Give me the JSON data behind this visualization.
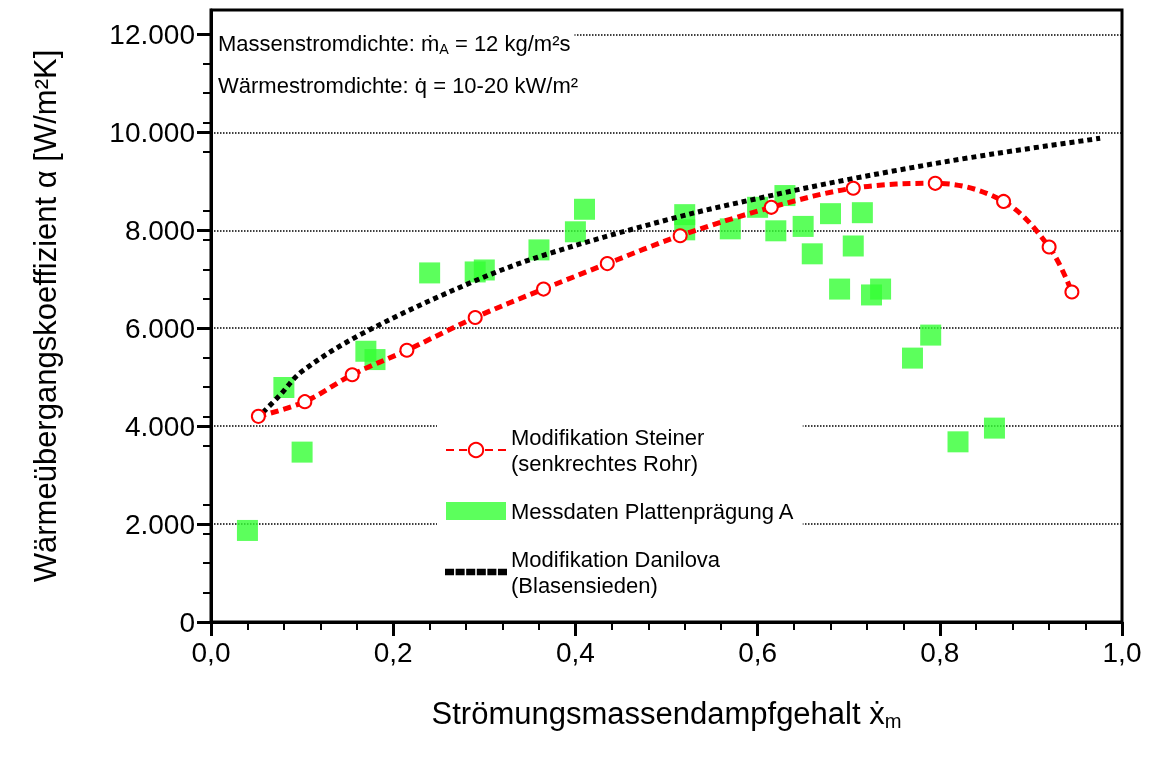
{
  "chart_data": {
    "type": "line",
    "xlabel": "Strömungsmassendampfgehalt ẋ$_{m}$",
    "ylabel": "Wärmeübergangskoeffizient α [W/m²K]",
    "annotations": [
      "Massenstromdichte: ṁ$_{A}$ = 12 kg/m²s",
      "Wärmestromdichte: q̇ = 10-20 kW/m²"
    ],
    "xlim": [
      0,
      1
    ],
    "xticks": [
      {
        "value": 0,
        "label": "0,0"
      },
      {
        "value": 0.2,
        "label": "0,2"
      },
      {
        "value": 0.4,
        "label": "0,4"
      },
      {
        "value": 0.6,
        "label": "0,6"
      },
      {
        "value": 0.8,
        "label": "0,8"
      },
      {
        "value": 1,
        "label": "1,0"
      }
    ],
    "ylim": [
      0,
      12500
    ],
    "yticks": [
      0,
      {
        "value": 2000,
        "label": "2.000"
      },
      {
        "value": 4000,
        "label": "4.000"
      },
      {
        "value": 6000,
        "label": "6.000"
      },
      {
        "value": 8000,
        "label": "8.000"
      },
      {
        "value": 10000,
        "label": "10.000"
      },
      {
        "value": 12000,
        "label": "12.000"
      }
    ],
    "grid": "y",
    "legend": "bottom",
    "series": [
      {
        "name": "Modifikation Steiner\n(senkrechtes Rohr)",
        "color": "#ff0000",
        "marker": "circle",
        "line_style": "dashed",
        "x": [
          0.052,
          0.103,
          0.155,
          0.215,
          0.29,
          0.365,
          0.435,
          0.515,
          0.615,
          0.705,
          0.795,
          0.87,
          0.92,
          0.945
        ],
        "values": [
          4200,
          4500,
          5050,
          5550,
          6220,
          6800,
          7320,
          7890,
          8470,
          8860,
          8960,
          8590,
          7660,
          6740
        ]
      },
      {
        "name": "Messdaten Plattenprägung A",
        "type": "scatter",
        "color": "#33ff33",
        "marker": "square",
        "x": [
          0.04,
          0.08,
          0.1,
          0.17,
          0.18,
          0.24,
          0.29,
          0.3,
          0.36,
          0.4,
          0.41,
          0.52,
          0.52,
          0.57,
          0.6,
          0.62,
          0.63,
          0.65,
          0.66,
          0.68,
          0.69,
          0.705,
          0.715,
          0.725,
          0.735,
          0.77,
          0.79,
          0.82,
          0.86
        ],
        "values": [
          1870,
          4790,
          3470,
          5530,
          5360,
          7130,
          7150,
          7190,
          7600,
          7970,
          8430,
          8320,
          8010,
          8030,
          8470,
          7990,
          8710,
          8080,
          7520,
          8340,
          6800,
          7680,
          8360,
          6680,
          6800,
          5390,
          5860,
          3680,
          3960
        ]
      },
      {
        "name": "Modifikation Danilova\n(Blasensieden)",
        "color": "#000000",
        "marker": "none",
        "line_style": "dotted",
        "x": [
          0.05,
          0.075,
          0.1,
          0.167,
          0.29,
          0.37,
          0.51,
          0.6,
          0.7,
          0.835,
          0.976
        ],
        "values": [
          4150,
          4620,
          5120,
          5900,
          6970,
          7520,
          8260,
          8650,
          9040,
          9490,
          9880
        ]
      }
    ]
  }
}
